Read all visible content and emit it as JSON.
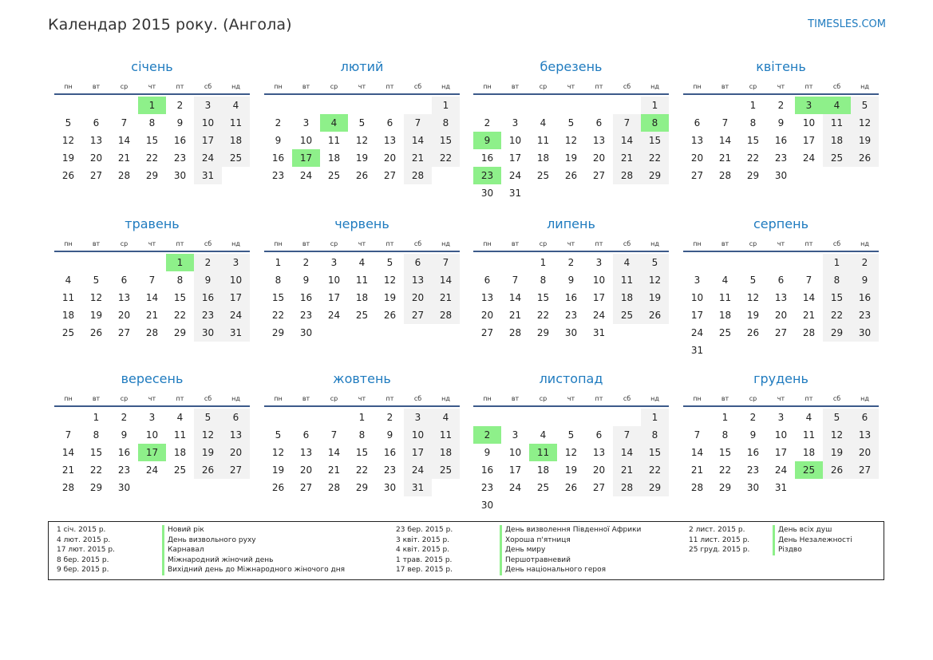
{
  "title": "Календар 2015 року. (Ангола)",
  "site": "TIMESLES.COM",
  "weekdays": [
    "пн",
    "вт",
    "ср",
    "чт",
    "пт",
    "сб",
    "нд"
  ],
  "months": [
    {
      "name": "січень",
      "offset": 3,
      "days": 31,
      "holidays": [
        1
      ]
    },
    {
      "name": "лютий",
      "offset": 6,
      "days": 28,
      "holidays": [
        4,
        17
      ]
    },
    {
      "name": "березень",
      "offset": 6,
      "days": 31,
      "holidays": [
        8,
        9,
        23
      ]
    },
    {
      "name": "квітень",
      "offset": 2,
      "days": 30,
      "holidays": [
        3,
        4
      ]
    },
    {
      "name": "травень",
      "offset": 4,
      "days": 31,
      "holidays": [
        1
      ]
    },
    {
      "name": "червень",
      "offset": 0,
      "days": 30,
      "holidays": []
    },
    {
      "name": "липень",
      "offset": 2,
      "days": 31,
      "holidays": []
    },
    {
      "name": "серпень",
      "offset": 5,
      "days": 31,
      "holidays": []
    },
    {
      "name": "вересень",
      "offset": 1,
      "days": 30,
      "holidays": [
        17
      ]
    },
    {
      "name": "жовтень",
      "offset": 3,
      "days": 31,
      "holidays": []
    },
    {
      "name": "листопад",
      "offset": 6,
      "days": 30,
      "holidays": [
        2,
        11
      ]
    },
    {
      "name": "грудень",
      "offset": 1,
      "days": 31,
      "holidays": [
        25
      ]
    }
  ],
  "holiday_list": [
    {
      "date": "1 січ. 2015 р.",
      "name": "Новий рік"
    },
    {
      "date": "4 лют. 2015 р.",
      "name": "День визвольного руху"
    },
    {
      "date": "17 лют. 2015 р.",
      "name": "Карнавал"
    },
    {
      "date": "8 бер. 2015 р.",
      "name": "Міжнародний жіночий день"
    },
    {
      "date": "9 бер. 2015 р.",
      "name": "Вихідний день до Міжнародного жіночого дня"
    },
    {
      "date": "23 бер. 2015 р.",
      "name": "День визволення Південної Африки"
    },
    {
      "date": "3 квіт. 2015 р.",
      "name": "Хороша п'ятниця"
    },
    {
      "date": "4 квіт. 2015 р.",
      "name": "День миру"
    },
    {
      "date": "1 трав. 2015 р.",
      "name": "Першотравневий"
    },
    {
      "date": "17 вер. 2015 р.",
      "name": "День національного героя"
    },
    {
      "date": "2 лист. 2015 р.",
      "name": "День всіх душ"
    },
    {
      "date": "11 лист. 2015 р.",
      "name": "День Незалежності"
    },
    {
      "date": "25 груд. 2015 р.",
      "name": "Різдво"
    }
  ]
}
